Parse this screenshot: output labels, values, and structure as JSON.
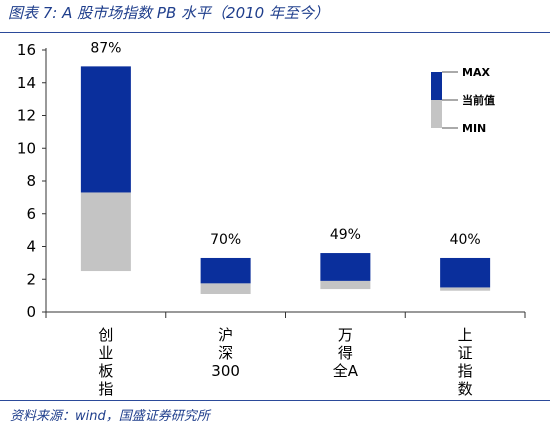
{
  "header": {
    "title": "图表 7:  A 股市场指数 PB 水平（2010 年至今）"
  },
  "footer": {
    "source": "资料来源：wind，国盛证券研究所"
  },
  "chart_data": {
    "type": "bar",
    "categories": [
      "创业板指",
      "沪深300",
      "万得全A",
      "上证指数"
    ],
    "category_lines": [
      [
        "创",
        "业",
        "板",
        "指"
      ],
      [
        "沪",
        "深",
        "300"
      ],
      [
        "万",
        "得",
        "全A"
      ],
      [
        "上",
        "证",
        "指",
        "数"
      ]
    ],
    "min": [
      2.5,
      1.1,
      1.4,
      1.3
    ],
    "current": [
      7.3,
      1.75,
      1.9,
      1.5
    ],
    "max": [
      15.0,
      3.3,
      3.6,
      3.3
    ],
    "percentile_labels": [
      "87%",
      "70%",
      "49%",
      "40%"
    ],
    "ylim": [
      0,
      16
    ],
    "yticks": [
      0,
      2,
      4,
      6,
      8,
      10,
      12,
      14,
      16
    ],
    "legend": {
      "entries": [
        "MAX",
        "当前值",
        "MIN"
      ],
      "position": "top-right"
    },
    "colors": {
      "upper": "#0a2f9c",
      "lower": "#c4c4c4"
    }
  }
}
